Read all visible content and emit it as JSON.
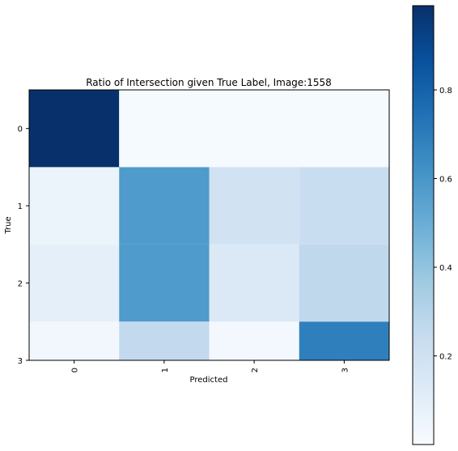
{
  "chart_data": {
    "type": "heatmap",
    "title": "Ratio of Intersection given True Label, Image:1558",
    "xlabel": "Predicted",
    "ylabel": "True",
    "x_categories": [
      "0",
      "1",
      "2",
      "3"
    ],
    "y_categories": [
      "0",
      "1",
      "2",
      "3"
    ],
    "values": [
      [
        0.99,
        0.01,
        0.01,
        0.01
      ],
      [
        0.06,
        0.58,
        0.19,
        0.23
      ],
      [
        0.09,
        0.58,
        0.14,
        0.27
      ],
      [
        0.03,
        0.26,
        0.02,
        0.69
      ]
    ],
    "colormap": "Blues",
    "colorbar": {
      "range": [
        0,
        0.99
      ],
      "ticks": [
        0.2,
        0.4,
        0.6,
        0.8
      ],
      "tick_labels": [
        "0.2",
        "0.4",
        "0.6",
        "0.8"
      ]
    },
    "y_axis_ticks": [
      "0",
      "1",
      "2",
      "3"
    ],
    "x_tick_rotation": "vertical",
    "grid": false,
    "legend": "colorbar-right"
  }
}
